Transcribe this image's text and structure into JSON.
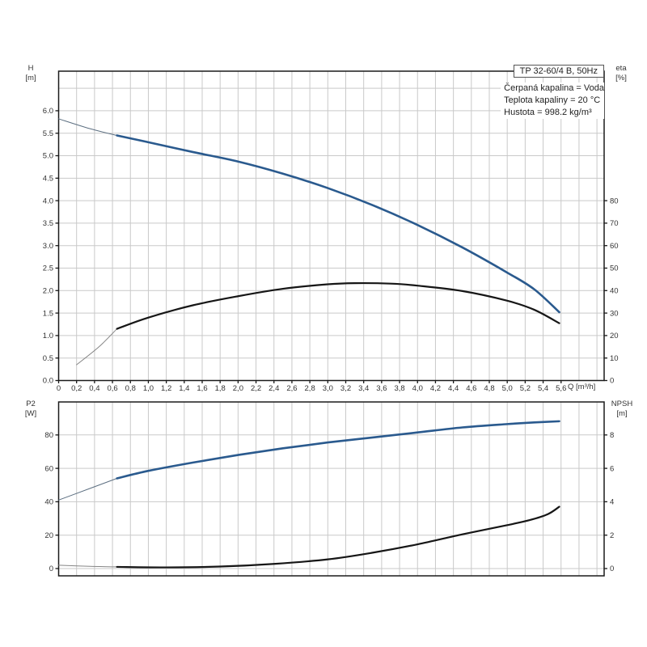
{
  "window": {
    "background": "#ffffff"
  },
  "title_box": {
    "label": "TP 32-60/4 B, 50Hz"
  },
  "info": {
    "line1": "Čerpaná kapalina = Voda",
    "line2": "Teplota kapaliny = 20 °C",
    "line3": "Hustota = 998.2 kg/m³"
  },
  "axis_headers": {
    "top_left_1": "H",
    "top_left_2": "[m]",
    "top_right_1": "eta",
    "top_right_2": "[%]",
    "bottom_left_1": "P2",
    "bottom_left_2": "[W]",
    "bottom_right_1": "NPSH",
    "bottom_right_2": "[m]",
    "x_unit": "Q [m³/h]"
  },
  "colors": {
    "curve_blue": "#2a5a8e",
    "curve_black": "#161616",
    "lead_blue_thin": "#5b6e80",
    "lead_gray_thin": "#858585",
    "grid": "#c9c9c9",
    "axis": "#1a1a1a",
    "text": "#333333"
  },
  "chart_data": [
    {
      "type": "line",
      "title": "TP 32-60/4 B, 50Hz",
      "xlabel": "Q [m³/h]",
      "ylabel_left": "H [m]",
      "ylabel_right": "eta [%]",
      "x_range": [
        0,
        6.08
      ],
      "x_ticks": {
        "step": 0.2,
        "labels": [
          "0",
          "0,2",
          "0,4",
          "0,6",
          "0,8",
          "1,0",
          "1,2",
          "1,4",
          "1,6",
          "1,8",
          "2,0",
          "2,2",
          "2,4",
          "2,6",
          "2,8",
          "3,0",
          "3,2",
          "3,4",
          "3,6",
          "3,8",
          "4,0",
          "4,2",
          "4,4",
          "4,6",
          "4,8",
          "5,0",
          "5,2",
          "5,4",
          "5,6"
        ]
      },
      "y_left_range": [
        0,
        6.88
      ],
      "y_left_ticks": {
        "values": [
          0,
          0.5,
          1,
          1.5,
          2,
          2.5,
          3,
          3.5,
          4,
          4.5,
          5,
          5.5,
          6
        ],
        "labels": [
          "0.0",
          "0.5",
          "1.0",
          "1.5",
          "2.0",
          "2.5",
          "3.0",
          "3.5",
          "4.0",
          "4.5",
          "5.0",
          "5.5",
          "6.0"
        ]
      },
      "grid_left": [
        0.5,
        1,
        1.5,
        2,
        2.5,
        3,
        3.5,
        4,
        4.5,
        5,
        5.5,
        6,
        6.5
      ],
      "y_right_range": [
        0,
        137.6
      ],
      "y_right_ticks": {
        "values": [
          0,
          10,
          20,
          30,
          40,
          50,
          60,
          70,
          80
        ],
        "labels": [
          "0",
          "10",
          "20",
          "30",
          "40",
          "50",
          "60",
          "70",
          "80"
        ]
      },
      "series": [
        {
          "name": "head-curve-lead",
          "axis": "left",
          "color_key": "lead_blue_thin",
          "width": 1,
          "points": [
            [
              0,
              5.82
            ],
            [
              0.35,
              5.6
            ],
            [
              0.65,
              5.45
            ]
          ]
        },
        {
          "name": "head-curve",
          "axis": "left",
          "color_key": "curve_blue",
          "width": 2.6,
          "points": [
            [
              0.65,
              5.45
            ],
            [
              1.0,
              5.3
            ],
            [
              1.5,
              5.08
            ],
            [
              2.0,
              4.87
            ],
            [
              2.5,
              4.6
            ],
            [
              3.0,
              4.28
            ],
            [
              3.5,
              3.9
            ],
            [
              4.0,
              3.46
            ],
            [
              4.5,
              2.96
            ],
            [
              5.0,
              2.4
            ],
            [
              5.3,
              2.03
            ],
            [
              5.58,
              1.52
            ]
          ]
        },
        {
          "name": "eta-curve-lead",
          "axis": "right",
          "color_key": "lead_gray_thin",
          "width": 1,
          "points": [
            [
              0.2,
              7
            ],
            [
              0.45,
              15
            ],
            [
              0.65,
              23
            ]
          ]
        },
        {
          "name": "eta-curve",
          "axis": "right",
          "color_key": "curve_black",
          "width": 2.2,
          "points": [
            [
              0.65,
              23
            ],
            [
              1.0,
              28
            ],
            [
              1.5,
              33.5
            ],
            [
              2.0,
              37.5
            ],
            [
              2.5,
              40.8
            ],
            [
              3.0,
              42.8
            ],
            [
              3.3,
              43.3
            ],
            [
              3.7,
              43.1
            ],
            [
              4.0,
              42.2
            ],
            [
              4.5,
              39.8
            ],
            [
              5.0,
              35.5
            ],
            [
              5.3,
              31.5
            ],
            [
              5.58,
              25.5
            ]
          ]
        }
      ]
    },
    {
      "type": "line",
      "title": "Power P2 and NPSH curves",
      "xlabel": "Q [m³/h]",
      "ylabel_left": "P2 [W]",
      "ylabel_right": "NPSH [m]",
      "x_range": [
        0,
        6.08
      ],
      "x_ticks": {
        "step": 0.2,
        "labels": []
      },
      "y_left_range": [
        -4.36,
        99.76
      ],
      "y_left_ticks": {
        "values": [
          0,
          20,
          40,
          60,
          80
        ],
        "labels": [
          "0",
          "20",
          "40",
          "60",
          "80"
        ]
      },
      "grid_left": [
        0,
        20,
        40,
        60,
        80
      ],
      "y_right_range": [
        -0.436,
        9.976
      ],
      "y_right_ticks": {
        "values": [
          0,
          2,
          4,
          6,
          8
        ],
        "labels": [
          "0",
          "2",
          "4",
          "6",
          "8"
        ]
      },
      "series": [
        {
          "name": "p2-curve-lead",
          "axis": "left",
          "color_key": "lead_blue_thin",
          "width": 1,
          "points": [
            [
              0,
              41
            ],
            [
              0.35,
              48
            ],
            [
              0.65,
              54
            ]
          ]
        },
        {
          "name": "p2-curve",
          "axis": "left",
          "color_key": "curve_blue",
          "width": 2.6,
          "points": [
            [
              0.65,
              54
            ],
            [
              1.0,
              58.5
            ],
            [
              1.5,
              63.5
            ],
            [
              2.0,
              68
            ],
            [
              2.5,
              72
            ],
            [
              3.0,
              75.5
            ],
            [
              3.5,
              78.5
            ],
            [
              4.0,
              81.5
            ],
            [
              4.5,
              84.5
            ],
            [
              5.0,
              86.5
            ],
            [
              5.3,
              87.5
            ],
            [
              5.58,
              88.2
            ]
          ]
        },
        {
          "name": "npsh-curve-lead",
          "axis": "right",
          "color_key": "lead_gray_thin",
          "width": 1,
          "points": [
            [
              0,
              0.2
            ],
            [
              0.35,
              0.13
            ],
            [
              0.65,
              0.1
            ]
          ]
        },
        {
          "name": "npsh-curve",
          "axis": "right",
          "color_key": "curve_black",
          "width": 2.2,
          "points": [
            [
              0.65,
              0.1
            ],
            [
              1.2,
              0.07
            ],
            [
              1.8,
              0.12
            ],
            [
              2.4,
              0.28
            ],
            [
              3.0,
              0.55
            ],
            [
              3.5,
              0.95
            ],
            [
              4.0,
              1.45
            ],
            [
              4.5,
              2.05
            ],
            [
              5.0,
              2.6
            ],
            [
              5.25,
              2.9
            ],
            [
              5.45,
              3.25
            ],
            [
              5.58,
              3.7
            ]
          ]
        }
      ]
    }
  ]
}
